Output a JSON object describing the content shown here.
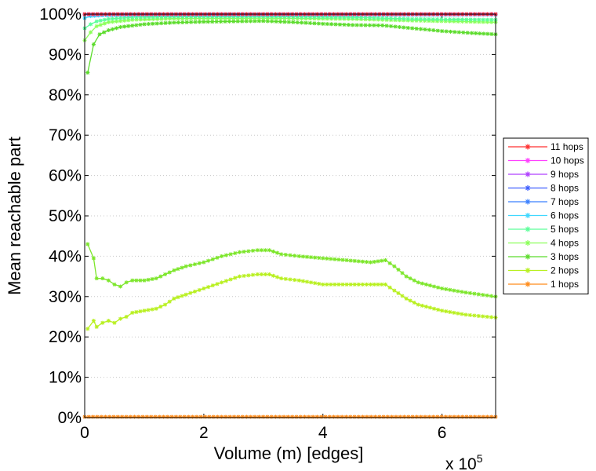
{
  "chart_data": {
    "type": "line",
    "xlabel": "Volume (m) [edges]",
    "ylabel": "Mean reachable part",
    "x_multiplier_label": "x 10",
    "x_multiplier_exponent": "5",
    "xlim": [
      0,
      690000
    ],
    "ylim": [
      0,
      100
    ],
    "x_ticks": [
      0,
      200000,
      400000,
      600000
    ],
    "x_tick_labels": [
      "0",
      "2",
      "4",
      "6"
    ],
    "y_ticks": [
      0,
      10,
      20,
      30,
      40,
      50,
      60,
      70,
      80,
      90,
      100
    ],
    "y_tick_labels": [
      "0%",
      "10%",
      "20%",
      "30%",
      "40%",
      "50%",
      "60%",
      "70%",
      "80%",
      "90%",
      "100%"
    ],
    "grid": "horizontal dotted",
    "legend_position": "right",
    "series": [
      {
        "name": "11 hops",
        "color": "#ff3030",
        "x": [
          0,
          690000
        ],
        "values": [
          100,
          100
        ]
      },
      {
        "name": "10 hops",
        "color": "#ff40ff",
        "x": [
          0,
          690000
        ],
        "values": [
          100,
          100
        ]
      },
      {
        "name": "9 hops",
        "color": "#b040ff",
        "x": [
          0,
          690000
        ],
        "values": [
          100,
          100
        ]
      },
      {
        "name": "8 hops",
        "color": "#4060ff",
        "x": [
          0,
          690000
        ],
        "values": [
          100,
          100
        ]
      },
      {
        "name": "7 hops",
        "color": "#3a80ff",
        "x": [
          0,
          690000
        ],
        "values": [
          99.9,
          99.9
        ]
      },
      {
        "name": "6 hops",
        "color": "#40d8ff",
        "x": [
          0,
          10000,
          30000,
          60000,
          100000,
          690000
        ],
        "values": [
          99.0,
          99.5,
          99.7,
          99.8,
          99.9,
          99.9
        ]
      },
      {
        "name": "5 hops",
        "color": "#5cff9a",
        "x": [
          0,
          10000,
          20000,
          40000,
          80000,
          150000,
          300000,
          450000,
          550000,
          690000
        ],
        "values": [
          96.5,
          97.5,
          98.2,
          98.8,
          99.2,
          99.4,
          99.4,
          99.2,
          98.8,
          98.6
        ]
      },
      {
        "name": "4 hops",
        "color": "#8cff5a",
        "x": [
          0,
          10000,
          20000,
          40000,
          80000,
          150000,
          300000,
          450000,
          550000,
          690000
        ],
        "values": [
          93.5,
          95.5,
          97.0,
          98.0,
          98.6,
          98.9,
          99.0,
          98.8,
          98.4,
          98.0
        ]
      },
      {
        "name": "3 hops",
        "color": "#5cdc2c",
        "x": [
          5000,
          15000,
          25000,
          40000,
          60000,
          100000,
          150000,
          200000,
          250000,
          300000,
          350000,
          400000,
          450000,
          500000,
          550000,
          600000,
          650000,
          690000
        ],
        "values": [
          85.5,
          92.5,
          95.0,
          96.0,
          96.8,
          97.5,
          97.9,
          98.1,
          98.2,
          98.3,
          98.0,
          97.6,
          97.3,
          97.2,
          96.5,
          95.8,
          95.3,
          95.0
        ]
      },
      {
        "name": "2 hops",
        "color": "#b8f020",
        "x": [
          5000,
          15000,
          20000,
          30000,
          40000,
          50000,
          60000,
          70000,
          80000,
          100000,
          120000,
          135000,
          150000,
          170000,
          200000,
          230000,
          260000,
          290000,
          310000,
          330000,
          360000,
          400000,
          440000,
          480000,
          505000,
          520000,
          540000,
          560000,
          600000,
          640000,
          690000
        ],
        "values": [
          22.0,
          24.0,
          22.5,
          23.5,
          24.0,
          23.5,
          24.5,
          25.0,
          26.0,
          26.5,
          27.0,
          28.0,
          29.5,
          30.5,
          32.0,
          33.5,
          35.0,
          35.5,
          35.5,
          34.5,
          34.0,
          33.0,
          33.0,
          33.0,
          33.0,
          31.5,
          29.5,
          28.0,
          26.5,
          25.5,
          24.8
        ]
      },
      {
        "name": "1 hops",
        "color": "#ff8c1a",
        "x": [
          0,
          690000
        ],
        "values": [
          0.2,
          0.2
        ]
      }
    ],
    "extra_lines": [
      {
        "color": "#7ce62a",
        "x": [
          5000,
          15000,
          20000,
          30000,
          40000,
          50000,
          60000,
          70000,
          80000,
          100000,
          120000,
          135000,
          150000,
          170000,
          200000,
          230000,
          260000,
          290000,
          310000,
          330000,
          360000,
          400000,
          440000,
          480000,
          505000,
          520000,
          540000,
          560000,
          600000,
          640000,
          690000
        ],
        "values": [
          43.0,
          39.5,
          34.5,
          34.5,
          34.0,
          33.0,
          32.5,
          33.5,
          34.0,
          34.0,
          34.5,
          35.5,
          36.5,
          37.5,
          38.5,
          40.0,
          41.0,
          41.5,
          41.5,
          40.5,
          40.0,
          39.5,
          39.0,
          38.5,
          39.0,
          37.5,
          35.0,
          33.5,
          32.0,
          31.0,
          30.0
        ]
      }
    ]
  }
}
